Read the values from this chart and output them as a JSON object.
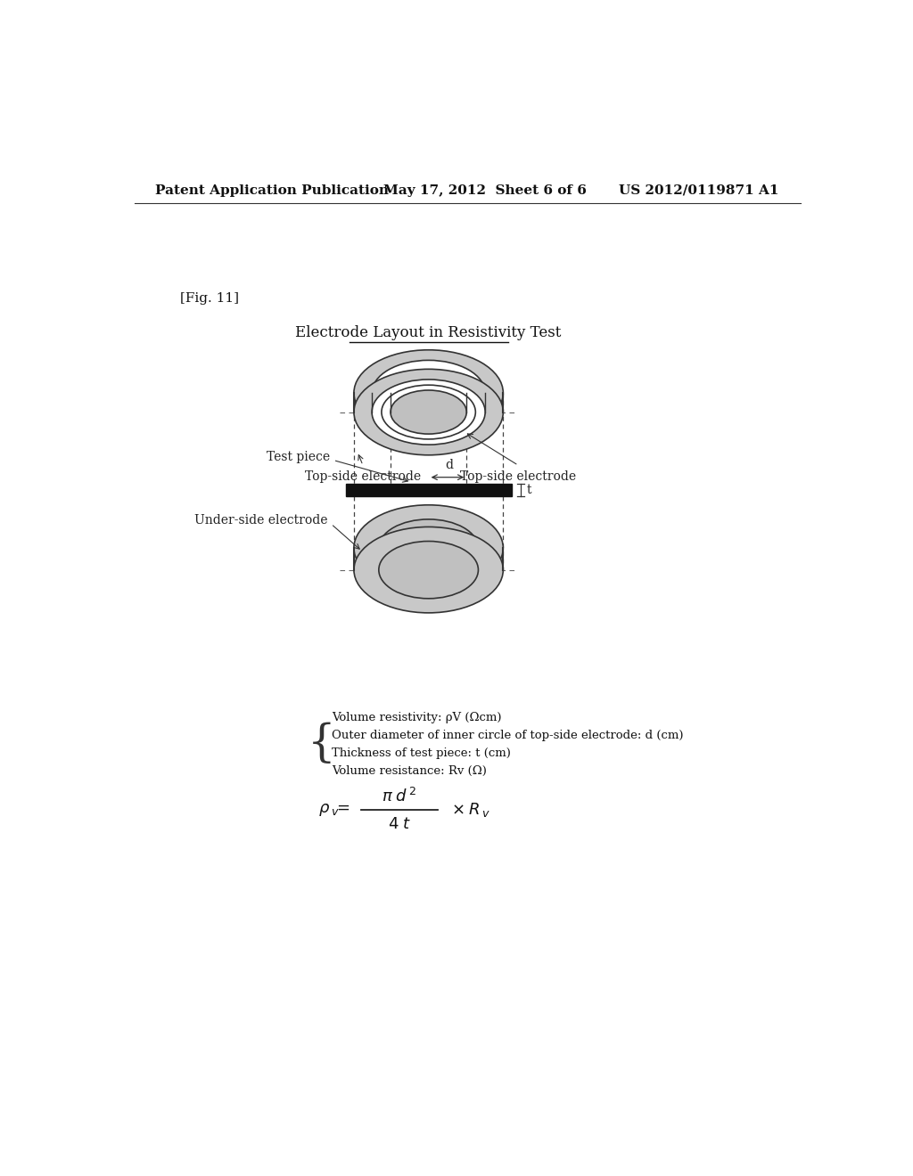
{
  "bg_color": "#ffffff",
  "header_left": "Patent Application Publication",
  "header_mid": "May 17, 2012  Sheet 6 of 6",
  "header_right": "US 2012/0119871 A1",
  "fig_label": "[Fig. 11]",
  "diagram_title": "Electrode Layout in Resistivity Test",
  "label_top_left": "Top-side electrode",
  "label_top_right": "Top-side electrode",
  "label_test_piece": "Test piece",
  "label_under": "Under-side electrode",
  "label_d": "d",
  "label_t": "t",
  "bullet1": "Volume resistivity: ρV (Ωcm)",
  "bullet2": "Outer diameter of inner circle of top-side electrode: d (cm)",
  "bullet3": "Thickness of test piece: t (cm)",
  "bullet4": "Volume resistance: Rv (Ω)"
}
